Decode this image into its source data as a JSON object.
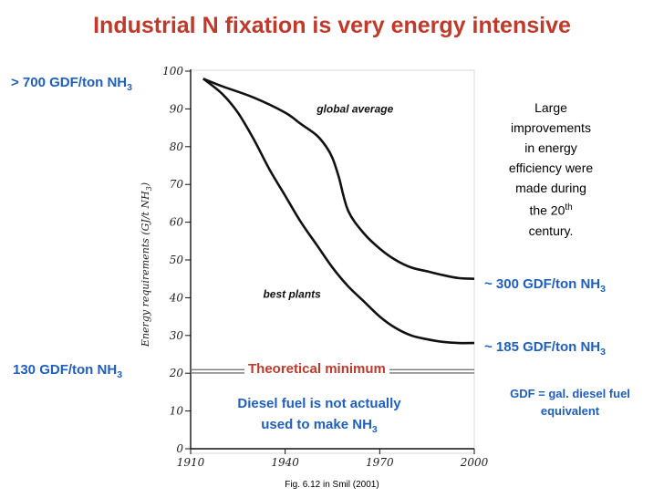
{
  "slide": {
    "title": "Industrial N fixation is very energy intensive",
    "source": "Fig. 6.12 in Smil  (2001)"
  },
  "annotations": {
    "top_left": {
      "text": "> 700 GDF/ton NH",
      "sub": "3"
    },
    "bottom_left": {
      "text": "130 GDF/ton NH",
      "sub": "3"
    },
    "right_upper": {
      "text": "~ 300 GDF/ton NH",
      "sub": "3"
    },
    "right_lower": {
      "text": "~ 185 GDF/ton NH",
      "sub": "3"
    },
    "theoretical": "Theoretical minimum",
    "diesel_line1": "Diesel fuel is not actually",
    "diesel_line2": "used to make NH",
    "diesel_sub": "3",
    "gdf_def_line1": "GDF = gal.  diesel fuel",
    "gdf_def_line2": "equivalent",
    "sidebar": {
      "l1": "Large",
      "l2": "improvements",
      "l3": "in energy",
      "l4": "efficiency were",
      "l5": "made during",
      "l6a": "the 20",
      "l6sup": "th",
      "l7": "century."
    }
  },
  "colors": {
    "title": "#c0392b",
    "note_blue": "#1f5fbf",
    "line": "#111111"
  },
  "chart_data": {
    "type": "line",
    "ylabel": "Energy requirements (GJ/t NH",
    "ylabel_sub": "3",
    "ylabel_end": ")",
    "xlim": [
      1910,
      2000
    ],
    "ylim": [
      0,
      100
    ],
    "xticks": [
      1910,
      1940,
      1970,
      2000
    ],
    "yticks": [
      0,
      10,
      20,
      30,
      40,
      50,
      60,
      70,
      80,
      90,
      100
    ],
    "theoretical_minimum": 20.5,
    "series": [
      {
        "name": "global average",
        "x": [
          1914,
          1920,
          1930,
          1940,
          1945,
          1950,
          1953,
          1955,
          1957,
          1960,
          1965,
          1970,
          1975,
          1980,
          1985,
          1990,
          1995,
          2000
        ],
        "y": [
          98,
          96,
          93,
          89,
          86,
          83,
          80,
          77,
          72,
          63,
          57,
          53,
          50,
          48,
          47,
          46,
          45.2,
          45
        ]
      },
      {
        "name": "best plants",
        "x": [
          1914,
          1920,
          1925,
          1930,
          1935,
          1940,
          1945,
          1950,
          1955,
          1960,
          1965,
          1970,
          1975,
          1980,
          1985,
          1990,
          1995,
          2000
        ],
        "y": [
          98,
          94,
          89,
          82,
          74,
          67,
          60,
          54,
          48,
          43,
          39,
          35,
          32,
          30,
          29,
          28.3,
          28,
          28
        ]
      }
    ]
  }
}
